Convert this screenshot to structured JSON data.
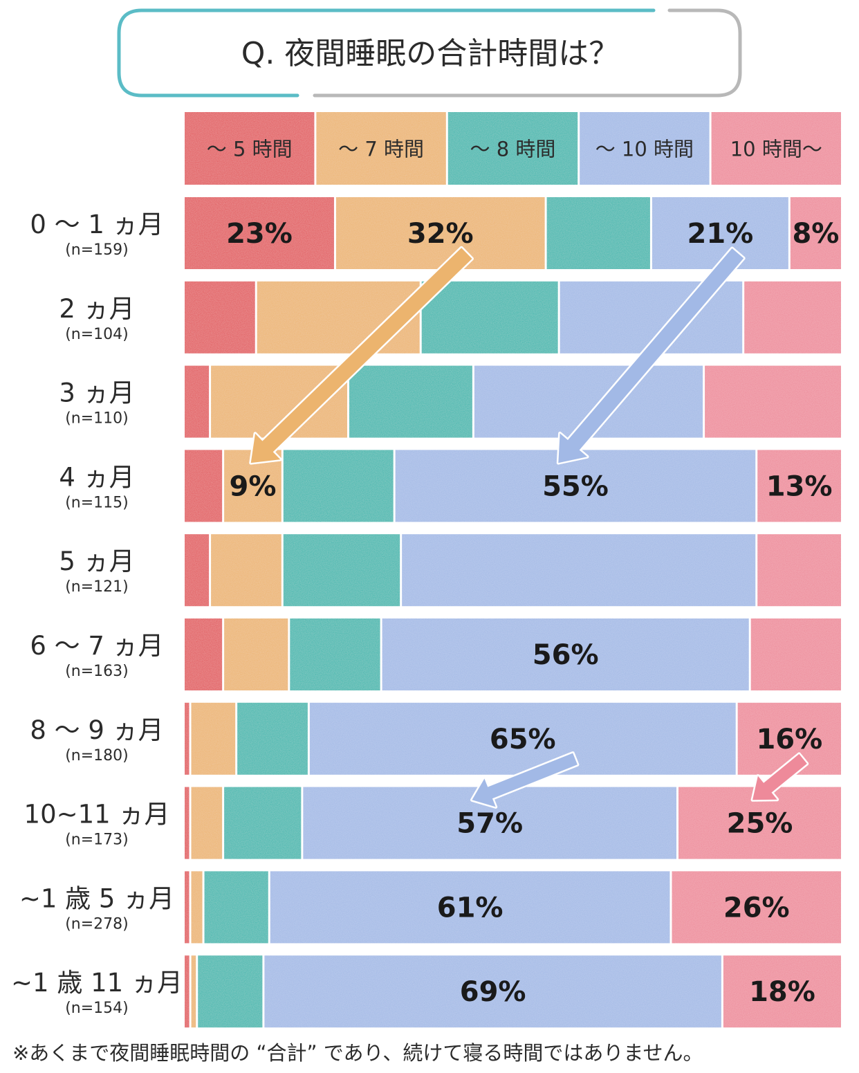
{
  "chart_data": {
    "type": "bar",
    "title": "Q. 夜間睡眠の合計時間は？",
    "categories": [
      {
        "label": "0 ～ 1 ヵ月",
        "n": "(n=159)"
      },
      {
        "label": "2 ヵ月",
        "n": "(n=104)"
      },
      {
        "label": "3 ヵ月",
        "n": "(n=110)"
      },
      {
        "label": "4 ヵ月",
        "n": "(n=115)"
      },
      {
        "label": "5 ヵ月",
        "n": "(n=121)"
      },
      {
        "label": "6 ～ 7 ヵ月",
        "n": "(n=163)"
      },
      {
        "label": "8 ～ 9 ヵ月",
        "n": "(n=180)"
      },
      {
        "label": "10~11 ヵ月",
        "n": "(n=173)"
      },
      {
        "label": "~1 歳 5 ヵ月",
        "n": "(n=278)"
      },
      {
        "label": "~1 歳 11 ヵ月",
        "n": "(n=154)"
      }
    ],
    "series": [
      {
        "name": "～ 5 時間",
        "color": "#e2575a",
        "values": [
          23,
          11,
          4,
          6,
          4,
          6,
          1,
          1,
          1,
          1
        ]
      },
      {
        "name": "～ 7 時間",
        "color": "#ecb46e",
        "values": [
          32,
          25,
          21,
          9,
          11,
          10,
          7,
          5,
          2,
          1
        ]
      },
      {
        "name": "～ 8 時間",
        "color": "#39b7ae",
        "values": [
          16,
          21,
          19,
          17,
          18,
          14,
          11,
          12,
          10,
          10
        ]
      },
      {
        "name": "～ 10 時間",
        "color": "#a2b9e6",
        "values": [
          21,
          28,
          35,
          55,
          54,
          56,
          65,
          57,
          61,
          69
        ]
      },
      {
        "name": "10 時間～",
        "color": "#ee8a9a",
        "values": [
          8,
          15,
          21,
          13,
          13,
          14,
          16,
          25,
          26,
          18
        ]
      }
    ],
    "data_labels": [
      {
        "row": 0,
        "series": 0,
        "text": "23%"
      },
      {
        "row": 0,
        "series": 1,
        "text": "32%"
      },
      {
        "row": 0,
        "series": 3,
        "text": "21%"
      },
      {
        "row": 0,
        "series": 4,
        "text": "8%"
      },
      {
        "row": 3,
        "series": 1,
        "text": "9%"
      },
      {
        "row": 3,
        "series": 3,
        "text": "55%"
      },
      {
        "row": 3,
        "series": 4,
        "text": "13%"
      },
      {
        "row": 5,
        "series": 3,
        "text": "56%"
      },
      {
        "row": 6,
        "series": 3,
        "text": "65%"
      },
      {
        "row": 6,
        "series": 4,
        "text": "16%"
      },
      {
        "row": 7,
        "series": 3,
        "text": "57%"
      },
      {
        "row": 7,
        "series": 4,
        "text": "25%"
      },
      {
        "row": 8,
        "series": 3,
        "text": "61%"
      },
      {
        "row": 8,
        "series": 4,
        "text": "26%"
      },
      {
        "row": 9,
        "series": 3,
        "text": "69%"
      },
      {
        "row": 9,
        "series": 4,
        "text": "18%"
      }
    ],
    "arrows": [
      {
        "from_row": 0,
        "to_row": 3,
        "series": 1,
        "color": "#ecb46e"
      },
      {
        "from_row": 0,
        "to_row": 3,
        "series": 3,
        "color": "#a2b9e6"
      },
      {
        "from_row": 6,
        "to_row": 7,
        "series": 3,
        "color": "#a2b9e6"
      },
      {
        "from_row": 6,
        "to_row": 7,
        "series": 4,
        "color": "#ee8a9a"
      }
    ],
    "xlim": [
      0,
      100
    ],
    "stacked": true,
    "orientation": "horizontal",
    "legend_placement": "top",
    "grid": false
  },
  "note": "※あくまで夜間睡眠時間の “合計” であり、続けて寝る時間ではありません。"
}
